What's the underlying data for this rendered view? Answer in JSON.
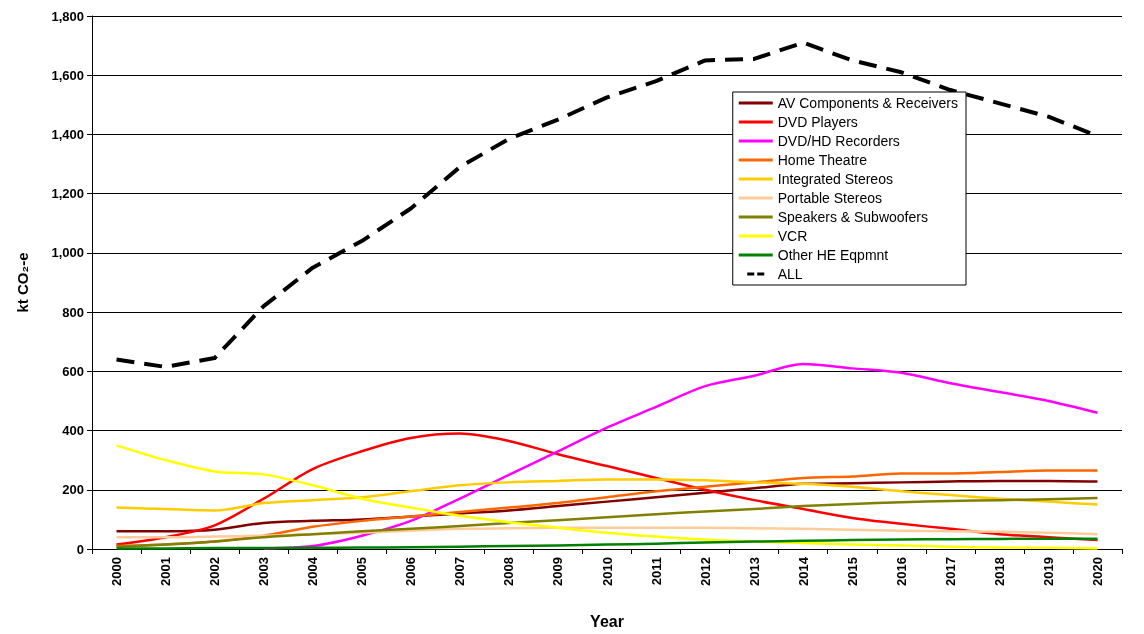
{
  "chart_data": {
    "type": "line",
    "xlabel": "Year",
    "ylabel": "kt CO₂-e",
    "categories": [
      "2000",
      "2001",
      "2002",
      "2003",
      "2004",
      "2005",
      "2006",
      "2007",
      "2008",
      "2009",
      "2010",
      "2011",
      "2012",
      "2013",
      "2014",
      "2015",
      "2016",
      "2017",
      "2018",
      "2019",
      "2020"
    ],
    "ylim": [
      0,
      1800
    ],
    "yticks": [
      0,
      {
        "value": 200,
        "label": "200"
      },
      {
        "value": 400,
        "label": "400"
      },
      {
        "value": 600,
        "label": "600"
      },
      {
        "value": 800,
        "label": "800"
      },
      {
        "value": 1000,
        "label": "1,000"
      },
      {
        "value": 1200,
        "label": "1,200"
      },
      {
        "value": 1400,
        "label": "1,400"
      },
      {
        "value": 1600,
        "label": "1,600"
      },
      {
        "value": 1800,
        "label": "1,800"
      }
    ],
    "grid": "y",
    "legend": "top right",
    "marker": "none",
    "series": [
      {
        "name": "AV Components & Receivers",
        "color": "#800000",
        "values": [
          60,
          60,
          65,
          88,
          95,
          100,
          110,
          120,
          130,
          145,
          160,
          175,
          190,
          205,
          220,
          222,
          225,
          228,
          230,
          230,
          228
        ]
      },
      {
        "name": "DVD Players",
        "color": "#ff0000",
        "values": [
          15,
          40,
          80,
          170,
          270,
          330,
          375,
          390,
          365,
          320,
          280,
          240,
          200,
          165,
          135,
          105,
          85,
          68,
          50,
          40,
          30
        ]
      },
      {
        "name": "DVD/HD Recorders",
        "color": "#ff00ff",
        "values": [
          null,
          null,
          null,
          2,
          10,
          45,
          95,
          170,
          250,
          330,
          410,
          480,
          550,
          585,
          625,
          610,
          595,
          560,
          530,
          500,
          460
        ]
      },
      {
        "name": "Home Theatre",
        "color": "#ff6600",
        "values": [
          10,
          15,
          25,
          45,
          75,
          95,
          110,
          125,
          140,
          155,
          175,
          195,
          210,
          225,
          240,
          245,
          255,
          255,
          260,
          265,
          265
        ]
      },
      {
        "name": "Integrated Stereos",
        "color": "#ffcc00",
        "values": [
          140,
          135,
          130,
          155,
          165,
          175,
          195,
          215,
          225,
          230,
          235,
          235,
          232,
          225,
          220,
          210,
          195,
          182,
          170,
          160,
          150
        ]
      },
      {
        "name": "Portable Stereos",
        "color": "#ffcc99",
        "values": [
          40,
          40,
          42,
          45,
          50,
          55,
          62,
          68,
          70,
          72,
          72,
          72,
          72,
          70,
          68,
          65,
          62,
          60,
          58,
          55,
          50
        ]
      },
      {
        "name": "Speakers & Subwoofers",
        "color": "#808000",
        "values": [
          8,
          15,
          25,
          40,
          50,
          60,
          68,
          78,
          88,
          97,
          107,
          117,
          127,
          135,
          145,
          152,
          158,
          162,
          165,
          168,
          172
        ]
      },
      {
        "name": "VCR",
        "color": "#ffff00",
        "values": [
          350,
          300,
          262,
          252,
          215,
          170,
          140,
          112,
          90,
          72,
          55,
          42,
          32,
          25,
          20,
          15,
          12,
          8,
          5,
          4,
          2
        ]
      },
      {
        "name": "Other HE Eqpmnt",
        "color": "#008000",
        "values": [
          2,
          2,
          3,
          3,
          4,
          5,
          6,
          8,
          10,
          12,
          15,
          18,
          22,
          25,
          28,
          30,
          32,
          33,
          34,
          35,
          35
        ]
      },
      {
        "name": "ALL",
        "color": "#000000",
        "line_style": "dashed",
        "values": [
          640,
          615,
          645,
          820,
          950,
          1040,
          1150,
          1290,
          1385,
          1450,
          1525,
          1580,
          1650,
          1655,
          1710,
          1650,
          1610,
          1550,
          1505,
          1460,
          1395
        ]
      }
    ]
  }
}
